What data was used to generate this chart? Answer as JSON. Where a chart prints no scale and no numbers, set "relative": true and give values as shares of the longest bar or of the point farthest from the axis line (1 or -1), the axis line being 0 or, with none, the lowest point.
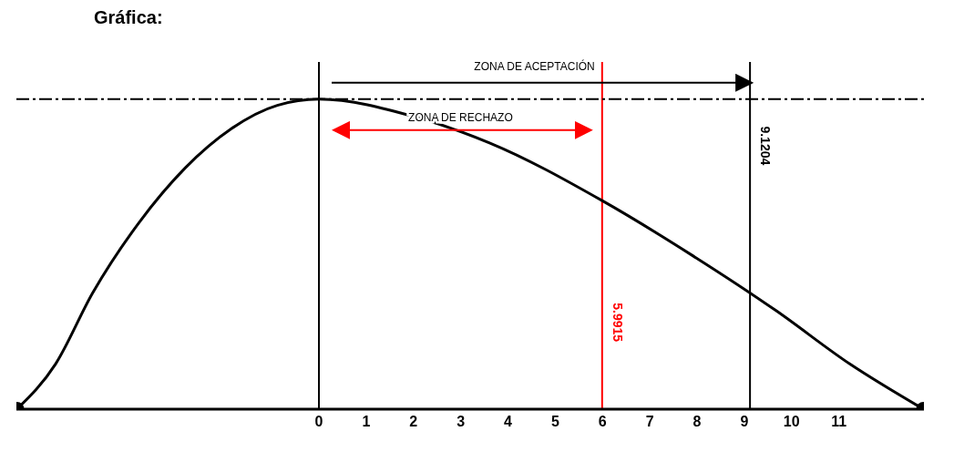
{
  "chart_data": {
    "type": "line",
    "title": "Gráfica:",
    "relative": true,
    "xlim": [
      -6.4,
      12.8
    ],
    "xticks": [
      0,
      1,
      2,
      3,
      4,
      5,
      6,
      7,
      8,
      9,
      10,
      11
    ],
    "marker": "none",
    "line_style": "solid",
    "x": [
      -6.39,
      -5.57,
      -4.79,
      -3.81,
      -2.83,
      -1.86,
      -0.88,
      0,
      2.05,
      3.61,
      6.0,
      7.91,
      9.67,
      11.23,
      12.79
    ],
    "series": [
      {
        "color": "#000000",
        "values": [
          0,
          0.146,
          0.374,
          0.601,
          0.778,
          0.904,
          0.98,
          1,
          0.942,
          0.859,
          0.672,
          0.495,
          0.318,
          0.146,
          0
        ]
      },
      {
        "type": "scatter",
        "color": "#000000",
        "marker": "circle",
        "x": [
          -6.39,
          12.79
        ],
        "values": [
          0,
          0
        ]
      }
    ],
    "ref_lines": [
      {
        "axis": "x",
        "value": 0,
        "label": null,
        "color": "#000000"
      },
      {
        "axis": "x",
        "value": 5.9915,
        "label": "5.9915",
        "color": "#ff0000"
      },
      {
        "axis": "x",
        "value": 9.1204,
        "label": "9.1204",
        "color": "#000000"
      },
      {
        "axis": "y",
        "value": 1,
        "label": null,
        "color": "#000000",
        "line_style": "dashed"
      }
    ],
    "annotations": [
      "ZONA DE ACEPTACIÓN",
      "ZONA DE RECHAZO"
    ]
  }
}
